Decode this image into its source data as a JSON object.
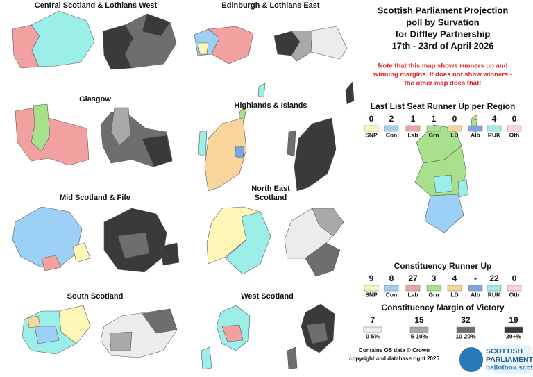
{
  "header": {
    "title_lines": [
      "Scottish Parliament Projection",
      "poll by Survation",
      "for Diffley Partnership",
      "17th - 23rd of April 2026"
    ]
  },
  "note_lines": [
    "Note that this map shows runners up and",
    "winning margins. It does not show winners -",
    "the other map does that!"
  ],
  "regions": [
    {
      "name_lines": [
        "Central Scotland & Lothians West"
      ]
    },
    {
      "name_lines": [
        "Edinburgh & Lothians East"
      ]
    },
    {
      "name_lines": [
        "Glasgow"
      ]
    },
    {
      "name_lines": [
        "Highlands & Islands"
      ]
    },
    {
      "name_lines": [
        "Mid Scotland & Fife"
      ]
    },
    {
      "name_lines": [
        "North East",
        "Scotland"
      ]
    },
    {
      "name_lines": [
        "South Scotland"
      ]
    },
    {
      "name_lines": [
        "West Scotland"
      ]
    }
  ],
  "list_runner_up": {
    "title": "Last List Seat Runner Up per Region",
    "items": [
      {
        "count": 0,
        "party": "SNP",
        "color": "#fff7b8"
      },
      {
        "count": 2,
        "party": "Con",
        "color": "#9dd0f5"
      },
      {
        "count": 1,
        "party": "Lab",
        "color": "#f2a0a0"
      },
      {
        "count": 1,
        "party": "Grn",
        "color": "#a8e08c"
      },
      {
        "count": 0,
        "party": "LD",
        "color": "#f8d59a"
      },
      {
        "count": "-",
        "party": "Alb",
        "color": "#7aa5e0"
      },
      {
        "count": 4,
        "party": "RUK",
        "color": "#9cefe8"
      },
      {
        "count": 0,
        "party": "Oth",
        "color": "#fad4dc"
      }
    ]
  },
  "constituency_runner_up": {
    "title": "Constituency Runner Up",
    "items": [
      {
        "count": 9,
        "party": "SNP",
        "color": "#fff7b8"
      },
      {
        "count": 8,
        "party": "Con",
        "color": "#9dd0f5"
      },
      {
        "count": 27,
        "party": "Lab",
        "color": "#f2a0a0"
      },
      {
        "count": 3,
        "party": "Grn",
        "color": "#a8e08c"
      },
      {
        "count": 4,
        "party": "LD",
        "color": "#f8d59a"
      },
      {
        "count": "-",
        "party": "Alb",
        "color": "#7aa5e0"
      },
      {
        "count": 22,
        "party": "RUK",
        "color": "#9cefe8"
      },
      {
        "count": 0,
        "party": "Oth",
        "color": "#fad4dc"
      }
    ]
  },
  "margin": {
    "title": "Constituency Margin of Victory",
    "items": [
      {
        "count": 7,
        "range": "0-5%",
        "color": "#ececec"
      },
      {
        "count": 15,
        "range": "5-10%",
        "color": "#a9a9a9"
      },
      {
        "count": 32,
        "range": "10-20%",
        "color": "#6e6e6e"
      },
      {
        "count": 19,
        "range": "20+%",
        "color": "#3a3a3a"
      }
    ]
  },
  "credits": [
    "Contains OS data © Crown",
    "copyright and database right 2025"
  ],
  "logo": {
    "lines": [
      "SCOTTISH",
      "PARLIAMENT",
      "ballotbox.scot"
    ]
  }
}
